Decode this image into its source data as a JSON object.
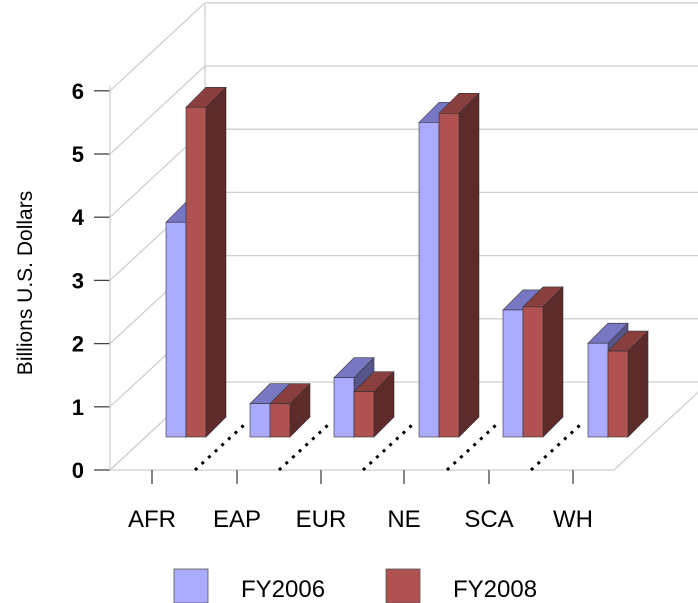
{
  "chart_data": {
    "type": "bar",
    "title": "",
    "xlabel": "",
    "ylabel": "Billions U.S. Dollars",
    "ylim": [
      0,
      6
    ],
    "yticks": [
      "0",
      "1",
      "2",
      "3",
      "4",
      "5",
      "6"
    ],
    "categories": [
      "AFR",
      "EAP",
      "EUR",
      "NE",
      "SCA",
      "WH"
    ],
    "series": [
      {
        "name": "FY2006",
        "values": [
          3.55,
          0.55,
          0.98,
          5.2,
          2.1,
          1.55
        ]
      },
      {
        "name": "FY2008",
        "values": [
          5.45,
          0.55,
          0.75,
          5.35,
          2.15,
          1.42
        ]
      }
    ],
    "grid": true,
    "legend_position": "bottom",
    "colors": {
      "FY2006": "#aaaaff",
      "FY2008": "#b05252"
    }
  }
}
